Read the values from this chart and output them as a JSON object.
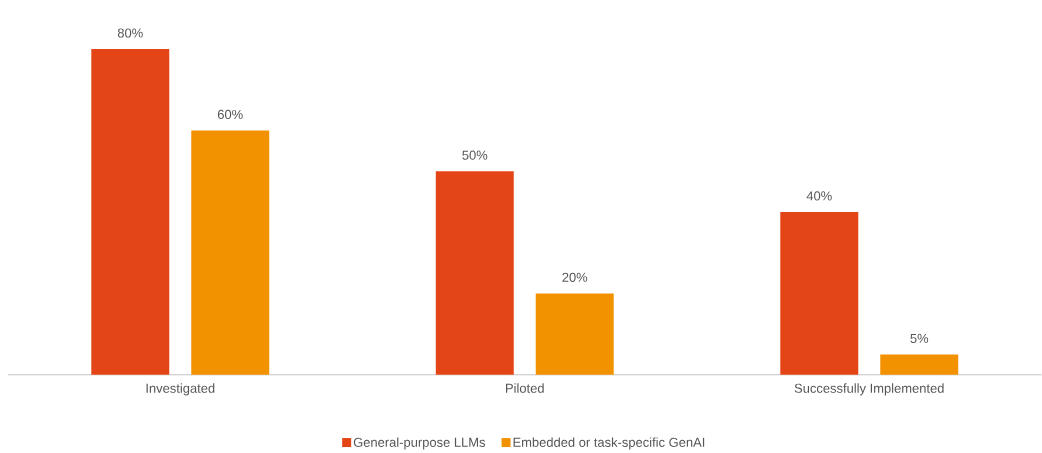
{
  "chart_data": {
    "type": "bar",
    "categories": [
      "Investigated",
      "Piloted",
      "Successfully Implemented"
    ],
    "series": [
      {
        "name": "General-purpose LLMs",
        "color": "#e34516",
        "values": [
          80,
          50,
          40
        ],
        "value_labels": [
          "80%",
          "50%",
          "40%"
        ]
      },
      {
        "name": "Embedded or task-specific GenAI",
        "color": "#f39200",
        "values": [
          60,
          20,
          5
        ],
        "value_labels": [
          "60%",
          "20%",
          "5%"
        ]
      }
    ],
    "legend": "bottom"
  }
}
